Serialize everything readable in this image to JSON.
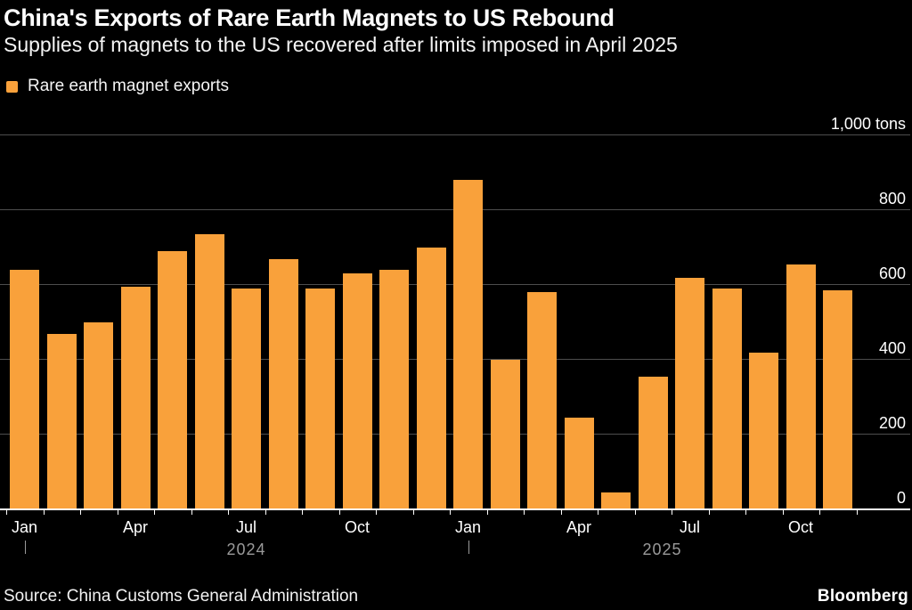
{
  "header": {
    "title": "China's Exports of Rare Earth Magnets to US Rebound",
    "subtitle": "Supplies of magnets to the US recovered after limits imposed in April 2025"
  },
  "legend": {
    "label": "Rare earth magnet exports"
  },
  "colors": {
    "background": "#000000",
    "bar": "#F9A13B",
    "grid": "#4D4D4D",
    "text": "#FFFFFF",
    "muted": "#9A9A9A"
  },
  "chart_data": {
    "type": "bar",
    "title": "China's Exports of Rare Earth Magnets to US Rebound",
    "subtitle": "Supplies of magnets to the US recovered after limits imposed in April 2025",
    "unit_label": "1,000 tons",
    "ylabel": "tons",
    "ylim": [
      0,
      1000
    ],
    "yticks": [
      0,
      200,
      400,
      600,
      800,
      1000
    ],
    "ytick_labels": [
      "0",
      "200",
      "400",
      "600",
      "800",
      "1,000 tons"
    ],
    "grid": true,
    "legend_position": "top-left",
    "bar_color": "#F9A13B",
    "categories": [
      "Jan 2024",
      "Feb 2024",
      "Mar 2024",
      "Apr 2024",
      "May 2024",
      "Jun 2024",
      "Jul 2024",
      "Aug 2024",
      "Sep 2024",
      "Oct 2024",
      "Nov 2024",
      "Dec 2024",
      "Jan 2025",
      "Feb 2025",
      "Mar 2025",
      "Apr 2025",
      "May 2025",
      "Jun 2025",
      "Jul 2025",
      "Aug 2025",
      "Sep 2025",
      "Oct 2025",
      "Nov 2025"
    ],
    "series": [
      {
        "name": "Rare earth magnet exports",
        "color": "#F9A13B",
        "values": [
          640,
          470,
          500,
          595,
          690,
          735,
          590,
          670,
          590,
          630,
          640,
          700,
          880,
          400,
          580,
          245,
          45,
          355,
          620,
          590,
          420,
          655,
          585
        ]
      }
    ],
    "x_tick_months": [
      {
        "index": 0,
        "label": "Jan"
      },
      {
        "index": 3,
        "label": "Apr"
      },
      {
        "index": 6,
        "label": "Jul"
      },
      {
        "index": 9,
        "label": "Oct"
      },
      {
        "index": 12,
        "label": "Jan"
      },
      {
        "index": 15,
        "label": "Apr"
      },
      {
        "index": 18,
        "label": "Jul"
      },
      {
        "index": 21,
        "label": "Oct"
      }
    ],
    "year_markers": [
      {
        "label": "2024",
        "start_index": 0
      },
      {
        "label": "2025",
        "start_index": 12
      }
    ]
  },
  "footer": {
    "source": "Source: China Customs General Administration",
    "brand": "Bloomberg"
  }
}
